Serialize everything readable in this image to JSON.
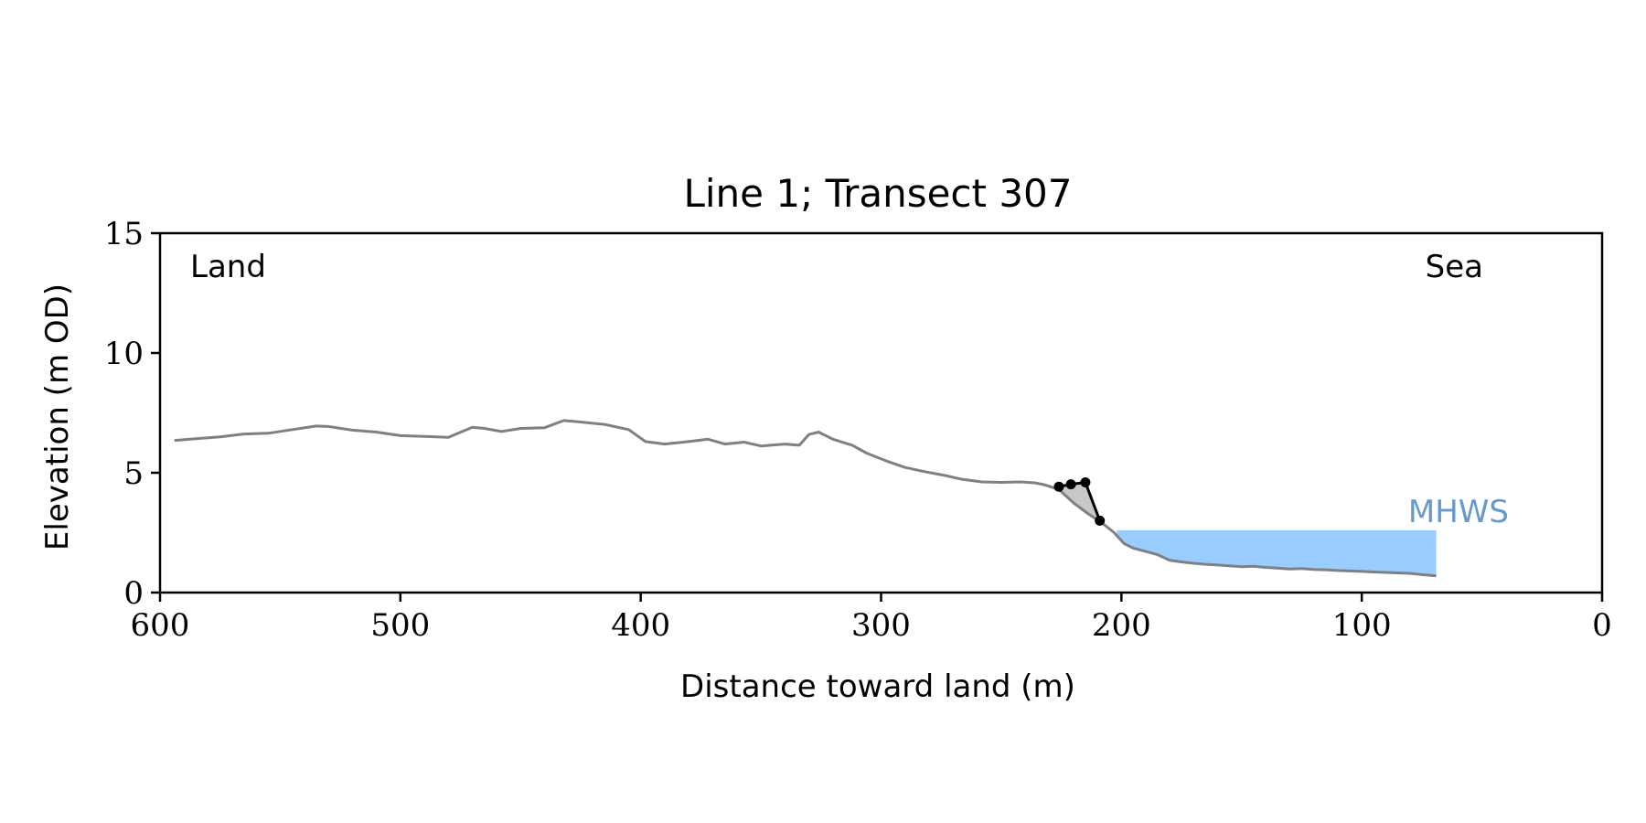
{
  "chart_data": {
    "type": "line",
    "title": "Line 1; Transect 307",
    "xlabel": "Distance toward land (m)",
    "ylabel": "Elevation (m OD)",
    "xlim": [
      600,
      0
    ],
    "ylim": [
      0,
      15
    ],
    "x_ticks": [
      600,
      500,
      400,
      300,
      200,
      100,
      0
    ],
    "y_ticks": [
      0,
      5,
      10,
      15
    ],
    "annotations": {
      "land": "Land",
      "sea": "Sea",
      "mhws": "MHWS"
    },
    "grid": false,
    "colors": {
      "profile": "#808080",
      "feature": "#000000",
      "feature_fill": "#c8c8c8",
      "water_fill": "#99ccff",
      "mhws_text": "#6699cc"
    },
    "mhws": {
      "level": 2.6,
      "x_start": 202,
      "x_end": 69
    },
    "series": [
      {
        "values": [
          [
            594,
            6.35
          ],
          [
            585,
            6.42
          ],
          [
            575,
            6.5
          ],
          [
            565,
            6.62
          ],
          [
            555,
            6.65
          ],
          [
            545,
            6.8
          ],
          [
            535,
            6.95
          ],
          [
            530,
            6.93
          ],
          [
            520,
            6.78
          ],
          [
            510,
            6.7
          ],
          [
            500,
            6.55
          ],
          [
            490,
            6.52
          ],
          [
            480,
            6.48
          ],
          [
            470,
            6.9
          ],
          [
            465,
            6.85
          ],
          [
            458,
            6.72
          ],
          [
            450,
            6.85
          ],
          [
            440,
            6.88
          ],
          [
            432,
            7.18
          ],
          [
            425,
            7.12
          ],
          [
            415,
            7.02
          ],
          [
            405,
            6.8
          ],
          [
            398,
            6.3
          ],
          [
            390,
            6.2
          ],
          [
            380,
            6.3
          ],
          [
            372,
            6.4
          ],
          [
            365,
            6.2
          ],
          [
            357,
            6.28
          ],
          [
            350,
            6.12
          ],
          [
            340,
            6.2
          ],
          [
            334,
            6.15
          ],
          [
            330,
            6.6
          ],
          [
            326,
            6.7
          ],
          [
            320,
            6.4
          ],
          [
            312,
            6.15
          ],
          [
            306,
            5.82
          ],
          [
            298,
            5.5
          ],
          [
            290,
            5.22
          ],
          [
            282,
            5.05
          ],
          [
            274,
            4.9
          ],
          [
            266,
            4.72
          ],
          [
            258,
            4.62
          ],
          [
            250,
            4.6
          ],
          [
            242,
            4.62
          ],
          [
            236,
            4.58
          ],
          [
            232,
            4.5
          ],
          [
            226,
            4.3
          ],
          [
            220,
            3.75
          ],
          [
            214,
            3.3
          ],
          [
            208,
            2.9
          ],
          [
            203,
            2.5
          ],
          [
            199,
            2.05
          ],
          [
            195,
            1.85
          ],
          [
            190,
            1.72
          ],
          [
            185,
            1.58
          ],
          [
            180,
            1.35
          ],
          [
            175,
            1.28
          ],
          [
            170,
            1.22
          ],
          [
            165,
            1.18
          ],
          [
            160,
            1.15
          ],
          [
            155,
            1.12
          ],
          [
            150,
            1.08
          ],
          [
            145,
            1.1
          ],
          [
            140,
            1.05
          ],
          [
            135,
            1.02
          ],
          [
            130,
            0.98
          ],
          [
            125,
            1.0
          ],
          [
            120,
            0.96
          ],
          [
            115,
            0.95
          ],
          [
            110,
            0.92
          ],
          [
            105,
            0.9
          ],
          [
            100,
            0.88
          ],
          [
            95,
            0.86
          ],
          [
            90,
            0.84
          ],
          [
            85,
            0.82
          ],
          [
            80,
            0.8
          ],
          [
            75,
            0.75
          ],
          [
            69,
            0.7
          ]
        ]
      },
      {
        "values": [
          [
            226,
            4.42
          ],
          [
            221,
            4.52
          ],
          [
            215,
            4.6
          ],
          [
            209,
            3.0
          ]
        ]
      }
    ]
  }
}
